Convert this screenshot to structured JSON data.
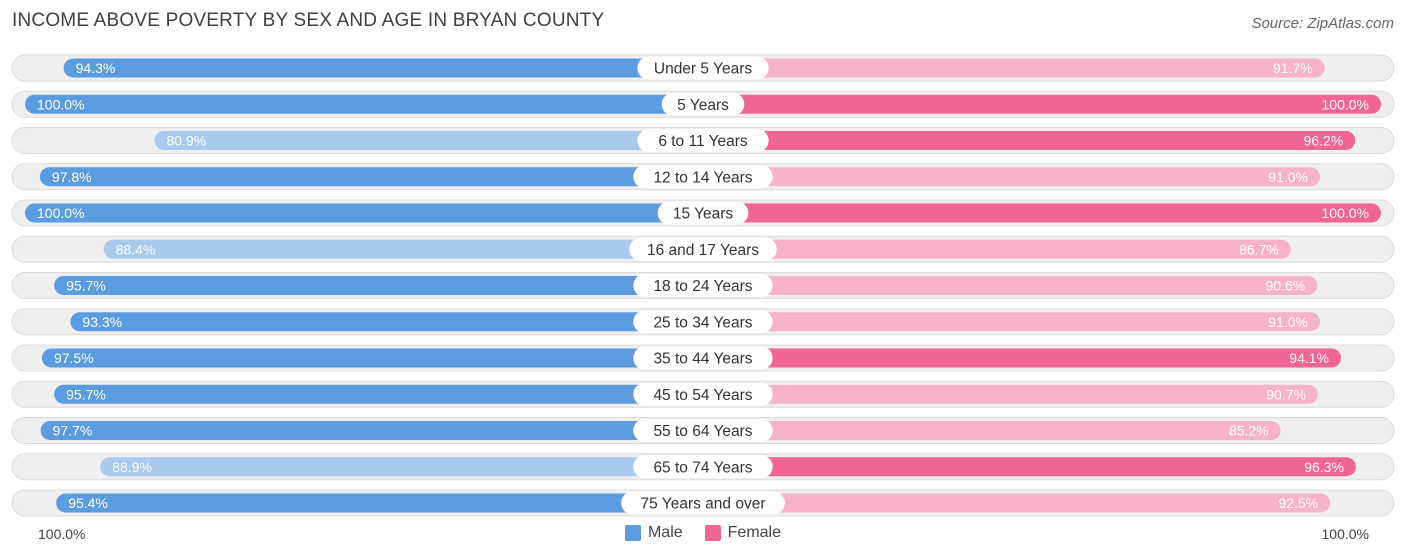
{
  "header": {
    "title": "INCOME ABOVE POVERTY BY SEX AND AGE IN BRYAN COUNTY",
    "source": "Source: ZipAtlas.com"
  },
  "axis": {
    "left_label": "100.0%",
    "right_label": "100.0%"
  },
  "legend": {
    "male_label": "Male",
    "female_label": "Female"
  },
  "colors": {
    "male_strong": "#5b9be0",
    "male_light": "#a9c9ee",
    "female_strong": "#f06592",
    "female_light": "#f7b3ca",
    "row_bg": "#efefef",
    "row_border": "#dcdcdc"
  },
  "chart_data": {
    "type": "bar",
    "orientation": "horizontal-butterfly",
    "title": "INCOME ABOVE POVERTY BY SEX AND AGE IN BRYAN COUNTY",
    "xlim": [
      0,
      100
    ],
    "categories": [
      "Under 5 Years",
      "5 Years",
      "6 to 11 Years",
      "12 to 14 Years",
      "15 Years",
      "16 and 17 Years",
      "18 to 24 Years",
      "25 to 34 Years",
      "35 to 44 Years",
      "45 to 54 Years",
      "55 to 64 Years",
      "65 to 74 Years",
      "75 Years and over"
    ],
    "series": [
      {
        "name": "Male",
        "values": [
          94.3,
          100.0,
          80.9,
          97.8,
          100.0,
          88.4,
          95.7,
          93.3,
          97.5,
          95.7,
          97.7,
          88.9,
          95.4
        ],
        "labels": [
          "94.3%",
          "100.0%",
          "80.9%",
          "97.8%",
          "100.0%",
          "88.4%",
          "95.7%",
          "93.3%",
          "97.5%",
          "95.7%",
          "97.7%",
          "88.9%",
          "95.4%"
        ]
      },
      {
        "name": "Female",
        "values": [
          91.7,
          100.0,
          96.2,
          91.0,
          100.0,
          86.7,
          90.6,
          91.0,
          94.1,
          90.7,
          85.2,
          96.3,
          92.5
        ],
        "labels": [
          "91.7%",
          "100.0%",
          "96.2%",
          "91.0%",
          "100.0%",
          "86.7%",
          "90.6%",
          "91.0%",
          "94.1%",
          "90.7%",
          "85.2%",
          "96.3%",
          "92.5%"
        ]
      }
    ]
  }
}
